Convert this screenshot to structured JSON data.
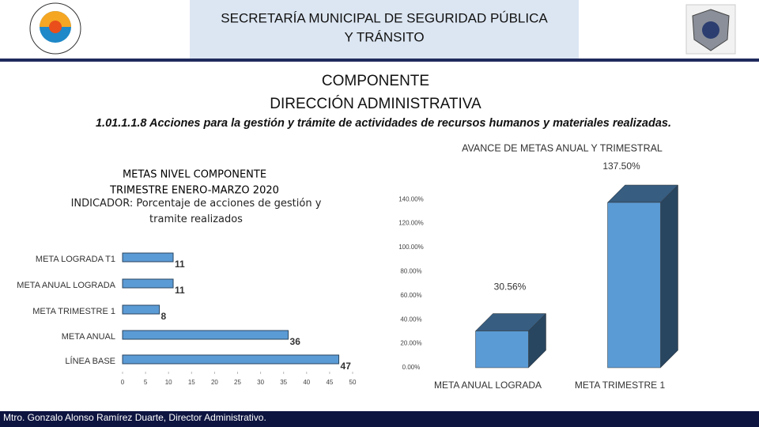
{
  "header": {
    "title": "SECRETARÍA MUNICIPAL DE SEGURIDAD PÚBLICA Y TRÁNSITO",
    "heading": "COMPONENTE",
    "subheading": "DIRECCIÓN ADMINISTRATIVA",
    "description": "1.01.1.1.8 Acciones para la gestión y trámite de actividades de recursos humanos y materiales realizadas."
  },
  "footer": "Mtro. Gonzalo Alonso Ramírez Duarte, Director Administrativo.",
  "chart_data": [
    {
      "type": "hbar",
      "title": "METAS NIVEL COMPONENTE",
      "subtitle": "TRIMESTRE ENERO-MARZO 2020",
      "indicator": "INDICADOR: Porcentaje de acciones de gestión y tramite realizados",
      "categories": [
        "META LOGRADA T1",
        "META ANUAL LOGRADA",
        "META TRIMESTRE 1",
        "META ANUAL",
        "LÍNEA BASE"
      ],
      "values": [
        11,
        11,
        8,
        36,
        47
      ],
      "color": "#5b9bd5",
      "xlim": [
        0,
        50
      ],
      "xticks": [
        0,
        5,
        10,
        15,
        20,
        25,
        30,
        35,
        40,
        45,
        50
      ]
    },
    {
      "type": "bar3d",
      "title": "AVANCE DE METAS ANUAL Y TRIMESTRAL",
      "categories": [
        "META ANUAL LOGRADA",
        "META TRIMESTRE 1"
      ],
      "values": [
        30.56,
        137.5
      ],
      "value_labels": [
        "30.56%",
        "137.50%"
      ],
      "color": "#5b9bd5",
      "ylim": [
        0,
        150
      ],
      "yticks": [
        {
          "value": 0,
          "label": "0.00%"
        },
        {
          "value": 20,
          "label": "20.00%"
        },
        {
          "value": 40,
          "label": "40.00%"
        },
        {
          "value": 60,
          "label": "60.00%"
        },
        {
          "value": 80,
          "label": "80.00%"
        },
        {
          "value": 100,
          "label": "100.00%"
        },
        {
          "value": 120,
          "label": "120.00%"
        },
        {
          "value": 140,
          "label": "140.00%"
        }
      ]
    }
  ]
}
